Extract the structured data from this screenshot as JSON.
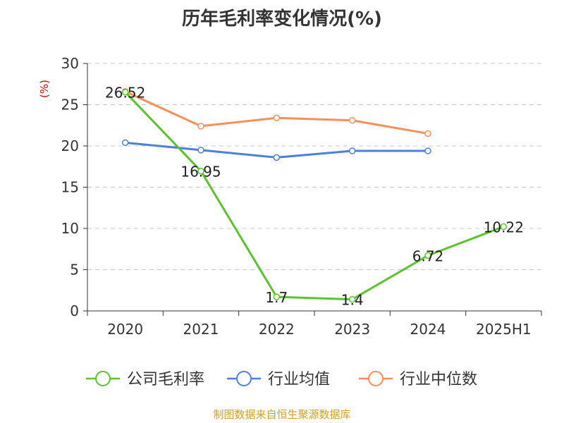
{
  "chart_data": {
    "type": "line",
    "title": "历年毛利率变化情况(%)",
    "ylabel": "(%)",
    "categories": [
      "2020",
      "2021",
      "2022",
      "2023",
      "2024",
      "2025H1"
    ],
    "ylim": [
      0,
      30
    ],
    "yticks": [
      0,
      5,
      10,
      15,
      20,
      25,
      30
    ],
    "grid": true,
    "legend_position": "bottom",
    "series": [
      {
        "name": "公司毛利率",
        "color": "#5cc22e",
        "values": [
          26.52,
          16.95,
          1.7,
          1.4,
          6.72,
          10.22
        ],
        "labels": [
          "26.52",
          "16.95",
          "1.7",
          "1.4",
          "6.72",
          "10.22"
        ]
      },
      {
        "name": "行业均值",
        "color": "#4d7fdb",
        "values": [
          20.4,
          19.5,
          18.6,
          19.4,
          19.4,
          null
        ]
      },
      {
        "name": "行业中位数",
        "color": "#f4905a",
        "values": [
          26.6,
          22.4,
          23.4,
          23.1,
          21.5,
          null
        ]
      }
    ]
  },
  "footer": {
    "source": "制图数据来自恒生聚源数据库"
  }
}
